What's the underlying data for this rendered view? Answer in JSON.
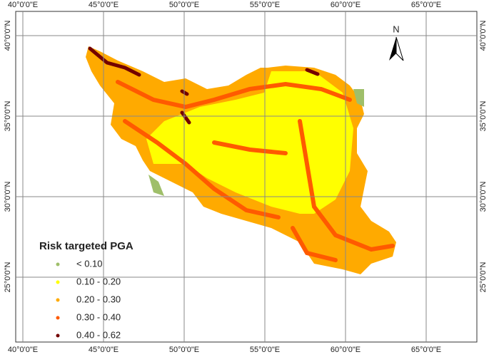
{
  "map": {
    "longitude_labels": [
      "40°0'0\"E",
      "45°0'0\"E",
      "50°0'0\"E",
      "55°0'0\"E",
      "60°0'0\"E",
      "65°0'0\"E"
    ],
    "latitude_labels": [
      "40°0'0\"N",
      "35°0'0\"N",
      "30°0'0\"N",
      "25°0'0\"N"
    ],
    "north_label": "N",
    "legend": {
      "title": "Risk targeted PGA",
      "items": [
        {
          "label": "< 0.10",
          "color": "#9fbf6a"
        },
        {
          "label": "0.10 - 0.20",
          "color": "#ffff00"
        },
        {
          "label": "0.20 - 0.30",
          "color": "#ffaa00"
        },
        {
          "label": "0.30 - 0.40",
          "color": "#ff5a00"
        },
        {
          "label": "0.40 - 0.62",
          "color": "#730000"
        }
      ]
    }
  }
}
